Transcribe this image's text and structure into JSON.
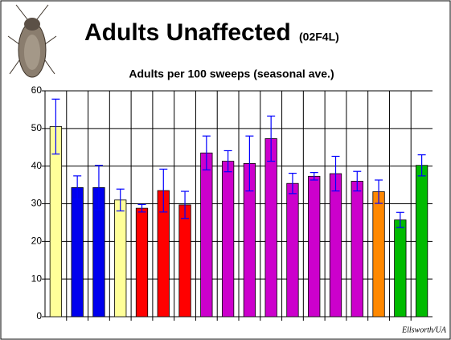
{
  "chart_data": {
    "type": "bar",
    "title": "Adults Unaffected",
    "title_code": "(02F4L)",
    "subtitle": "Adults per 100 sweeps (seasonal ave.)",
    "credit": "Ellsworth/UA",
    "values": [
      50.5,
      34.3,
      34.3,
      31,
      28.8,
      33.5,
      29.7,
      43.5,
      41.3,
      40.7,
      47.3,
      35.4,
      37.3,
      38,
      36,
      33.2,
      25.7,
      40.2
    ],
    "errors": [
      7.3,
      3.1,
      5.9,
      2.9,
      1,
      5.7,
      3.6,
      4.5,
      2.8,
      7.3,
      6,
      2.7,
      1,
      4.6,
      2.6,
      3.1,
      2,
      2.8
    ],
    "colors": [
      "#ffff99",
      "#0000ee",
      "#0000ee",
      "#ffff99",
      "#ff0000",
      "#ff0000",
      "#ff0000",
      "#cc00cc",
      "#cc00cc",
      "#cc00cc",
      "#cc00cc",
      "#cc00cc",
      "#cc00cc",
      "#cc00cc",
      "#cc00cc",
      "#ff8800",
      "#00bb00",
      "#00bb00"
    ],
    "error_color": "#0000ff",
    "ylim": [
      0,
      60
    ],
    "yticks": [
      0,
      10,
      20,
      30,
      40,
      50,
      60
    ],
    "grid": true
  }
}
